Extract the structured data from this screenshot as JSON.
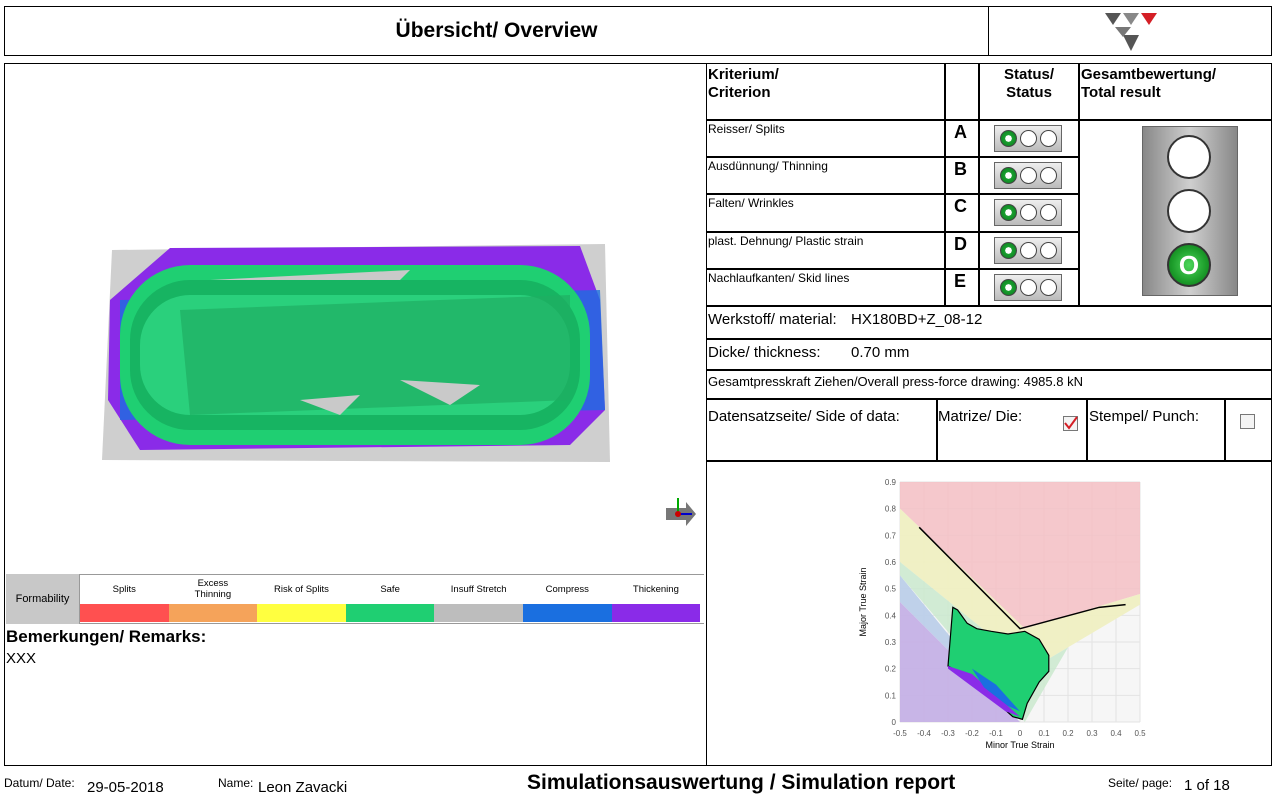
{
  "header": {
    "title": "Übersicht/ Overview"
  },
  "legend": {
    "label": "Formability",
    "items": [
      {
        "label": "Splits",
        "color": "#ff5050"
      },
      {
        "label": "Excess\nThinning",
        "color": "#f5a35a"
      },
      {
        "label": "Risk of Splits",
        "color": "#ffff40"
      },
      {
        "label": "Safe",
        "color": "#1fcf72"
      },
      {
        "label": "Insuff Stretch",
        "color": "#bdbdbd"
      },
      {
        "label": "Compress",
        "color": "#1a6fe0"
      },
      {
        "label": "Thickening",
        "color": "#8a2be8"
      }
    ]
  },
  "remarks": {
    "heading": "Bemerkungen/ Remarks:",
    "text": "XXX"
  },
  "criteria_table": {
    "col_criterion": "Kriterium/\nCriterion",
    "col_status": "Status/\nStatus",
    "col_total": "Gesamtbewertung/\nTotal result",
    "rows": [
      {
        "label": "Reisser/ Splits",
        "letter": "A",
        "status": "green"
      },
      {
        "label": "Ausdünnung/ Thinning",
        "letter": "B",
        "status": "green"
      },
      {
        "label": "Falten/ Wrinkles",
        "letter": "C",
        "status": "green"
      },
      {
        "label": "plast. Dehnung/ Plastic strain",
        "letter": "D",
        "status": "green"
      },
      {
        "label": "Nachlaufkanten/ Skid lines",
        "letter": "E",
        "status": "green"
      }
    ],
    "total_status": "green",
    "total_lamp_symbol": "O"
  },
  "material": {
    "label": "Werkstoff/ material:",
    "value": "HX180BD+Z_08-12"
  },
  "thickness": {
    "label": "Dicke/ thickness:",
    "value": "0.70 mm"
  },
  "press_force": {
    "text": "Gesamtpresskraft Ziehen/Overall press-force drawing: 4985.8 kN"
  },
  "side_of_data": {
    "label": "Datensatzseite/ Side of data:",
    "die_label": "Matrize/ Die:",
    "die_checked": true,
    "punch_label": "Stempel/ Punch:",
    "punch_checked": false
  },
  "chart_data": {
    "type": "scatter",
    "title": "",
    "xlabel": "Minor True Strain",
    "ylabel": "Major True Strain",
    "xlim": [
      -0.5,
      0.5
    ],
    "ylim": [
      0,
      0.9
    ],
    "xticks": [
      "-0.5",
      "-0.4",
      "-0.3",
      "-0.2",
      "-0.1",
      "0",
      "0.1",
      "0.2",
      "0.3",
      "0.4",
      "0.5"
    ],
    "yticks": [
      "0",
      "0.1",
      "0.2",
      "0.3",
      "0.4",
      "0.5",
      "0.6",
      "0.7",
      "0.8",
      "0.9"
    ],
    "flc_curve": {
      "x": [
        -0.42,
        0.0,
        0.33,
        0.44
      ],
      "y": [
        0.73,
        0.35,
        0.43,
        0.44
      ]
    },
    "point_cloud_outline": {
      "x": [
        -0.28,
        -0.26,
        -0.22,
        -0.18,
        -0.12,
        -0.05,
        0.02,
        0.08,
        0.12,
        0.12,
        0.08,
        0.03,
        0.01,
        -0.03,
        -0.08,
        -0.14,
        -0.2,
        -0.26,
        -0.3,
        -0.28
      ],
      "y": [
        0.43,
        0.42,
        0.37,
        0.35,
        0.34,
        0.33,
        0.34,
        0.31,
        0.25,
        0.19,
        0.15,
        0.07,
        0.01,
        0.02,
        0.06,
        0.12,
        0.15,
        0.19,
        0.21,
        0.43
      ]
    }
  },
  "footer": {
    "date_label": "Datum/ Date:",
    "date": "29-05-2018",
    "name_label": "Name:",
    "name": "Leon Zavacki",
    "report_title": "Simulationsauswertung / Simulation report",
    "page_label": "Seite/ page:",
    "page": "1 of 18"
  }
}
